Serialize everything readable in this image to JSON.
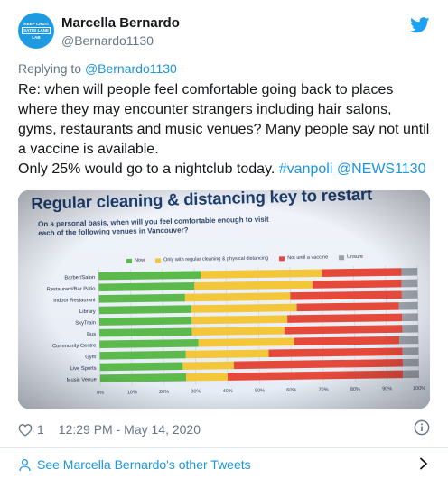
{
  "tweet": {
    "author_name": "Marcella Bernardo",
    "author_handle": "@Bernardo1130",
    "avatar_lines": [
      "KEEP CRUTI",
      "SATISI LANE",
      "LAB"
    ],
    "replying_prefix": "Replying to",
    "replying_to": "@Bernardo1130",
    "text_line1": "Re: when will people feel comfortable going back to places where they may encounter strangers including hair salons, gyms, restaurants and music venues? Many people say not until a vaccine is available.",
    "text_line2_plain": "Only 25% would go to a nightclub today.",
    "hashtag": "#vanpoli",
    "mention": "@NEWS1130",
    "likes": "1",
    "timestamp": "12:29 PM - May 14, 2020",
    "other_tweets_link": "See Marcella Bernardo's other Tweets"
  },
  "icons": {
    "twitter": "twitter-bird-icon",
    "like": "heart-icon",
    "info": "info-icon",
    "profile": "person-icon",
    "chevron": "chevron-right-icon"
  },
  "colors": {
    "twitter_blue": "#1da1f2",
    "link_blue": "#1b95e0",
    "now": "#5cb94c",
    "cleaning": "#f4c73b",
    "vaccine": "#e5493a",
    "unsure": "#9aa0a8"
  },
  "chart_data": {
    "type": "bar",
    "orientation": "horizontal",
    "stacked": true,
    "title": "Regular cleaning & distancing key to restart",
    "subtitle": "On a personal basis, when will you feel comfortable enough to visit each of the following venues in Vancouver?",
    "categories": [
      "Barber/Salon",
      "Restaurant/Bar Patio",
      "Indoor Restaurant",
      "Library",
      "SkyTrain",
      "Bus",
      "Community Centre",
      "Gym",
      "Live Sports",
      "Music Venue"
    ],
    "series": [
      {
        "name": "Now",
        "color": "#5cb94c",
        "values": [
          32,
          30,
          27,
          29,
          29,
          29,
          31,
          27,
          26,
          27
        ]
      },
      {
        "name": "Only with regular cleaning & physical distancing",
        "color": "#f4c73b",
        "values": [
          38,
          37,
          33,
          33,
          30,
          29,
          30,
          26,
          16,
          13
        ]
      },
      {
        "name": "Not until a vaccine",
        "color": "#e5493a",
        "values": [
          25,
          28,
          35,
          32,
          36,
          37,
          33,
          42,
          53,
          55
        ]
      },
      {
        "name": "Unsure",
        "color": "#9aa0a8",
        "values": [
          5,
          5,
          5,
          6,
          5,
          5,
          6,
          5,
          5,
          5
        ]
      }
    ],
    "x_ticks": [
      "0%",
      "10%",
      "20%",
      "30%",
      "40%",
      "50%",
      "60%",
      "70%",
      "80%",
      "90%",
      "100%"
    ],
    "xlim": [
      0,
      100
    ],
    "grid": true,
    "legend_position": "top"
  }
}
